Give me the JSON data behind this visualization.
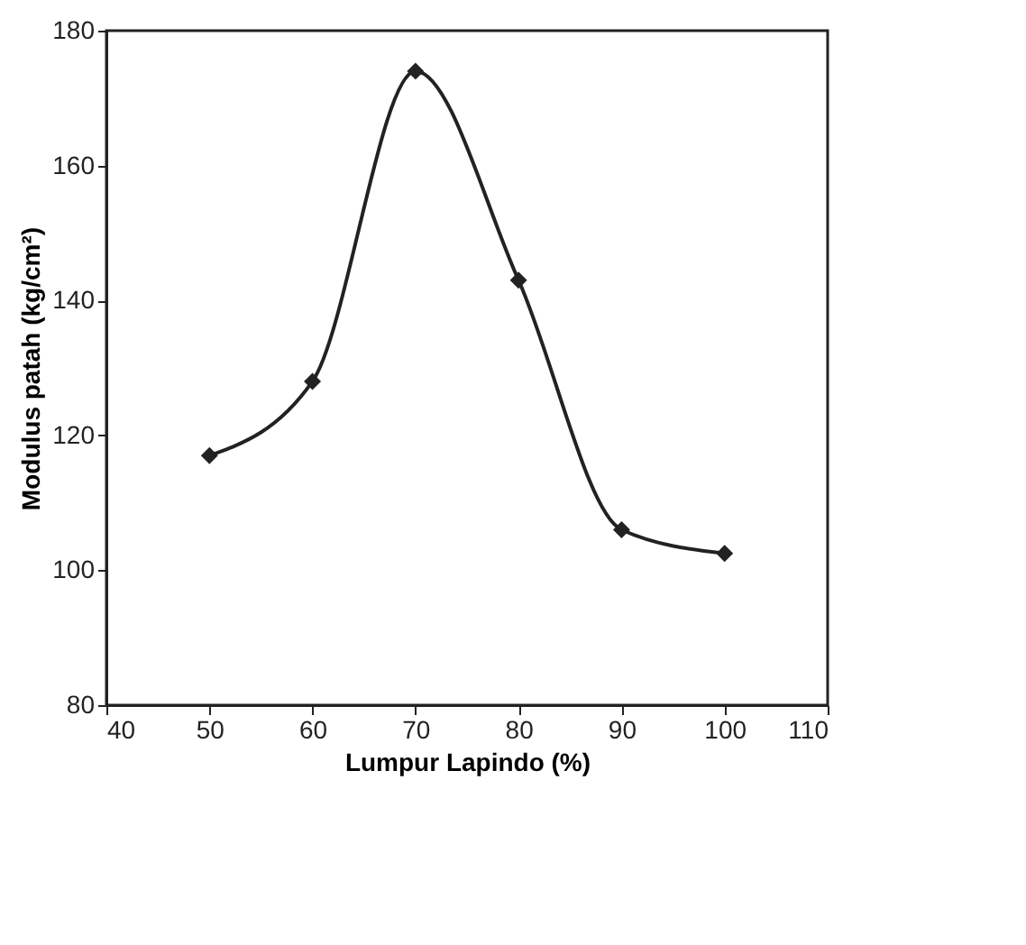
{
  "chart_data": {
    "type": "line",
    "xlabel": "Lumpur Lapindo (%)",
    "ylabel": "Modulus patah (kg/cm²)",
    "x": [
      50,
      60,
      70,
      80,
      90,
      100
    ],
    "series": [
      {
        "color": "#222222",
        "values": [
          117,
          128,
          174,
          143,
          106,
          102.5
        ]
      }
    ],
    "xlim": [
      40,
      110
    ],
    "xticks": [
      40,
      50,
      60,
      70,
      80,
      90,
      100,
      110
    ],
    "ylim": [
      80,
      180
    ],
    "yticks": [
      80,
      100,
      120,
      140,
      160,
      180
    ],
    "marker": "diamond",
    "line_style": "solid",
    "grid": false,
    "legend": false
  }
}
